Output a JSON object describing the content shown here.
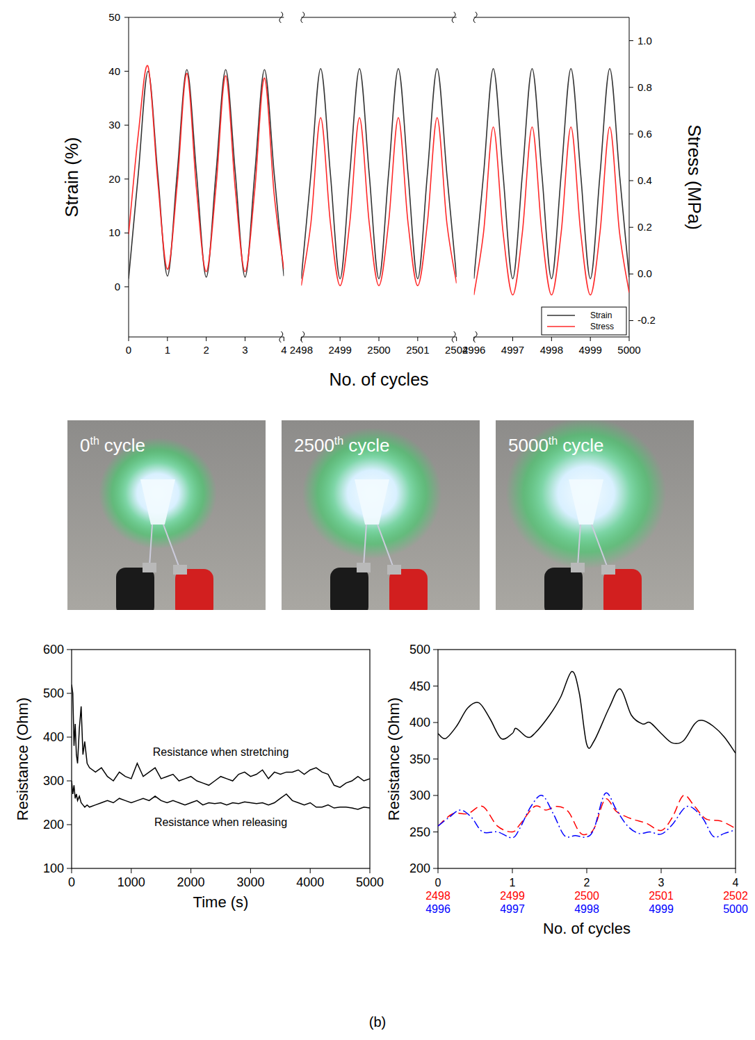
{
  "chart_data": [
    {
      "type": "line",
      "x_label": "No. of cycles",
      "y_label": "Strain (%)",
      "y2_label": "Stress (MPa)",
      "xlim": [
        [
          0,
          4
        ],
        [
          2498,
          2502
        ],
        [
          4996,
          5000
        ]
      ],
      "xticks": [
        0,
        1,
        2,
        3,
        4,
        2498,
        2499,
        2500,
        2501,
        2502,
        4996,
        4997,
        4998,
        4999,
        5000
      ],
      "ylim": [
        -9.3,
        50
      ],
      "yticks": [
        0,
        10,
        20,
        30,
        40,
        50
      ],
      "y2lim": [
        -0.27,
        1.1
      ],
      "y2ticks": [
        -0.2,
        {
          "value": 0,
          "label": "0.0"
        },
        0.2,
        0.4,
        0.6,
        0.8,
        {
          "value": 1,
          "label": "1.0"
        }
      ],
      "legend": "lower right",
      "x": [
        0,
        0.25,
        0.5,
        0.75,
        1,
        1.25,
        1.5,
        1.75,
        2,
        2.25,
        2.5,
        2.75,
        3,
        3.25,
        3.5,
        3.75,
        4,
        2498,
        2498.25,
        2498.5,
        2498.75,
        2499,
        2499.25,
        2499.5,
        2499.75,
        2500,
        2500.25,
        2500.5,
        2500.75,
        2501,
        2501.25,
        2501.5,
        2501.75,
        2502,
        4996,
        4996.25,
        4996.5,
        4996.75,
        4997,
        4997.25,
        4997.5,
        4997.75,
        4998,
        4998.25,
        4998.5,
        4998.75,
        4999,
        4999.25,
        4999.5,
        4999.75,
        5000
      ],
      "series": [
        {
          "name": "Strain",
          "color": "#333333",
          "values": [
            1.5,
            21,
            40,
            21,
            2,
            21,
            40.3,
            21,
            1.8,
            21,
            40.3,
            21,
            1.8,
            21,
            40.3,
            21,
            2,
            1.5,
            21,
            40.5,
            21,
            1.5,
            21,
            40.5,
            21,
            1.5,
            21,
            40.5,
            21,
            1.5,
            21,
            40.5,
            21,
            1.8,
            1.5,
            21,
            40.5,
            21,
            1.5,
            21,
            40.5,
            21,
            1.5,
            21,
            40.5,
            21,
            1.5,
            21,
            40.5,
            21,
            1.8
          ]
        },
        {
          "name": "Stress",
          "color": "#ff2a2a",
          "axis": "y2",
          "values": [
            0.17,
            0.6,
            0.89,
            0.4,
            0.02,
            0.38,
            0.86,
            0.36,
            0.01,
            0.37,
            0.85,
            0.36,
            0.01,
            0.36,
            0.84,
            0.34,
            0.02,
            -0.05,
            0.22,
            0.67,
            0.22,
            -0.05,
            0.22,
            0.67,
            0.22,
            -0.05,
            0.22,
            0.67,
            0.22,
            -0.05,
            0.22,
            0.67,
            0.22,
            -0.04,
            -0.09,
            0.18,
            0.63,
            0.18,
            -0.09,
            0.18,
            0.63,
            0.18,
            -0.09,
            0.18,
            0.63,
            0.18,
            -0.09,
            0.18,
            0.63,
            0.18,
            -0.08
          ]
        }
      ]
    },
    {
      "type": "line",
      "x_label": "Time (s)",
      "y_label": "Resistance (Ohm)",
      "xlim": [
        0,
        5000
      ],
      "xticks": [
        0,
        1000,
        2000,
        3000,
        4000,
        5000
      ],
      "ylim": [
        100,
        600
      ],
      "yticks": [
        100,
        200,
        300,
        400,
        500,
        600
      ],
      "x": [
        0,
        20,
        40,
        60,
        80,
        100,
        130,
        160,
        190,
        220,
        260,
        300,
        400,
        500,
        600,
        700,
        800,
        900,
        1000,
        1100,
        1200,
        1300,
        1400,
        1500,
        1600,
        1700,
        1800,
        1900,
        2000,
        2100,
        2200,
        2300,
        2400,
        2500,
        2600,
        2700,
        2800,
        2900,
        3000,
        3100,
        3200,
        3300,
        3400,
        3500,
        3600,
        3700,
        3800,
        3900,
        4000,
        4100,
        4200,
        4300,
        4400,
        4500,
        4600,
        4700,
        4800,
        4900,
        5000
      ],
      "series": [
        {
          "label": "Resistance when stretching",
          "color": "#000000",
          "values": [
            520,
            500,
            380,
            430,
            360,
            340,
            420,
            470,
            360,
            390,
            340,
            330,
            320,
            330,
            310,
            300,
            320,
            310,
            305,
            340,
            310,
            320,
            330,
            305,
            310,
            315,
            300,
            305,
            310,
            300,
            295,
            290,
            300,
            310,
            305,
            300,
            315,
            320,
            310,
            315,
            325,
            305,
            320,
            315,
            320,
            320,
            325,
            315,
            325,
            330,
            320,
            315,
            290,
            285,
            295,
            300,
            310,
            300,
            305
          ]
        },
        {
          "label": "Resistance when releasing",
          "color": "#000000",
          "values": [
            300,
            270,
            290,
            260,
            270,
            255,
            265,
            250,
            245,
            240,
            245,
            240,
            245,
            250,
            255,
            250,
            260,
            255,
            250,
            255,
            260,
            255,
            265,
            255,
            250,
            255,
            250,
            245,
            250,
            255,
            245,
            250,
            248,
            250,
            245,
            250,
            248,
            252,
            250,
            248,
            250,
            245,
            250,
            260,
            270,
            255,
            250,
            245,
            250,
            240,
            240,
            245,
            238,
            240,
            240,
            238,
            235,
            240,
            238
          ]
        }
      ]
    },
    {
      "type": "line",
      "x_label": "No. of cycles",
      "y_label": "Resistance (Ohm)",
      "xlim": [
        0,
        4
      ],
      "xticks": [
        0,
        1,
        2,
        3,
        4
      ],
      "ylim": [
        200,
        500
      ],
      "yticks": [
        200,
        250,
        300,
        350,
        400,
        450,
        500
      ],
      "series": [
        {
          "color": "#000000",
          "line_style": "solid",
          "x": [
            0,
            0.1,
            0.25,
            0.4,
            0.55,
            0.7,
            0.85,
            1.0,
            1.05,
            1.2,
            1.3,
            1.5,
            1.65,
            1.8,
            1.9,
            2.0,
            2.1,
            2.3,
            2.45,
            2.6,
            2.75,
            2.85,
            3.0,
            3.15,
            3.3,
            3.45,
            3.55,
            3.7,
            3.85,
            4.0
          ],
          "values": [
            385,
            378,
            395,
            420,
            427,
            405,
            378,
            385,
            392,
            380,
            385,
            410,
            435,
            470,
            440,
            370,
            375,
            420,
            446,
            410,
            398,
            400,
            385,
            372,
            375,
            398,
            403,
            395,
            380,
            358
          ]
        },
        {
          "color": "#ff0000",
          "line_style": "dashed",
          "cycles": [
            2498,
            2499,
            2500,
            2501,
            2502
          ],
          "x": [
            0,
            0.2,
            0.4,
            0.6,
            0.8,
            1.0,
            1.1,
            1.3,
            1.45,
            1.6,
            1.75,
            1.9,
            2.0,
            2.1,
            2.25,
            2.4,
            2.6,
            2.8,
            3.0,
            3.15,
            3.3,
            3.45,
            3.6,
            3.8,
            4.0
          ],
          "values": [
            258,
            275,
            275,
            285,
            258,
            250,
            260,
            285,
            280,
            285,
            278,
            250,
            247,
            255,
            295,
            278,
            268,
            262,
            252,
            270,
            300,
            285,
            268,
            265,
            255
          ]
        },
        {
          "color": "#0000ff",
          "line_style": "dash-dot",
          "cycles": [
            4996,
            4997,
            4998,
            4999,
            5000
          ],
          "x": [
            0,
            0.15,
            0.3,
            0.45,
            0.6,
            0.8,
            1.0,
            1.1,
            1.25,
            1.4,
            1.55,
            1.7,
            1.85,
            2.0,
            2.1,
            2.25,
            2.4,
            2.55,
            2.7,
            2.85,
            3.0,
            3.15,
            3.35,
            3.55,
            3.7,
            3.85,
            4.0
          ],
          "values": [
            258,
            270,
            280,
            270,
            250,
            250,
            242,
            255,
            285,
            300,
            275,
            245,
            245,
            243,
            255,
            303,
            280,
            258,
            248,
            250,
            247,
            260,
            285,
            270,
            244,
            248,
            253
          ]
        }
      ]
    }
  ],
  "photos": [
    {
      "label": {
        "cycle": 0,
        "suffix": "th",
        "word": "cycle"
      }
    },
    {
      "label": {
        "cycle": 2500,
        "suffix": "th",
        "word": "cycle"
      }
    },
    {
      "label": {
        "cycle": 5000,
        "suffix": "th",
        "word": "cycle"
      }
    }
  ],
  "caption": "(b)"
}
